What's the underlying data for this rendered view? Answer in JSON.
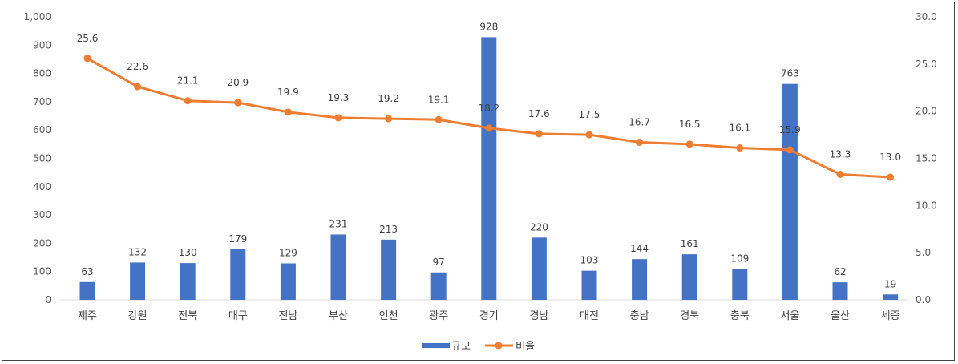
{
  "chart_data": {
    "type": "bar",
    "categories": [
      "제주",
      "강원",
      "전북",
      "대구",
      "전남",
      "부산",
      "인천",
      "광주",
      "경기",
      "경남",
      "대전",
      "충남",
      "경북",
      "충북",
      "서울",
      "울산",
      "세종"
    ],
    "series": [
      {
        "name": "규모",
        "type": "bar",
        "axis": "left",
        "color": "#4472c4",
        "values": [
          63,
          132,
          130,
          179,
          129,
          231,
          213,
          97,
          928,
          220,
          103,
          144,
          161,
          109,
          763,
          62,
          19
        ]
      },
      {
        "name": "비율",
        "type": "line",
        "axis": "right",
        "color": "#ed7d31",
        "values": [
          25.6,
          22.6,
          21.1,
          20.9,
          19.9,
          19.3,
          19.2,
          19.1,
          18.2,
          17.6,
          17.5,
          16.7,
          16.5,
          16.1,
          15.9,
          13.3,
          13.0
        ]
      }
    ],
    "y_left": {
      "min": 0,
      "max": 1000,
      "step": 100,
      "tick_labels": [
        "0",
        "100",
        "200",
        "300",
        "400",
        "500",
        "600",
        "700",
        "800",
        "900",
        "1,000"
      ]
    },
    "y_right": {
      "min": 0,
      "max": 30,
      "step": 5,
      "tick_labels": [
        "0.0",
        "5.0",
        "10.0",
        "15.0",
        "20.0",
        "25.0",
        "30.0"
      ]
    },
    "bar_labels": [
      "63",
      "132",
      "130",
      "179",
      "129",
      "231",
      "213",
      "97",
      "928",
      "220",
      "103",
      "144",
      "161",
      "109",
      "763",
      "62",
      "19"
    ],
    "line_labels": [
      "25.6",
      "22.6",
      "21.1",
      "20.9",
      "19.9",
      "19.3",
      "19.2",
      "19.1",
      "18.2",
      "17.6",
      "17.5",
      "16.7",
      "16.5",
      "16.1",
      "15.9",
      "13.3",
      "13.0"
    ],
    "legend": {
      "position": "bottom",
      "items": [
        "규모",
        "비율"
      ]
    },
    "grid": false
  }
}
